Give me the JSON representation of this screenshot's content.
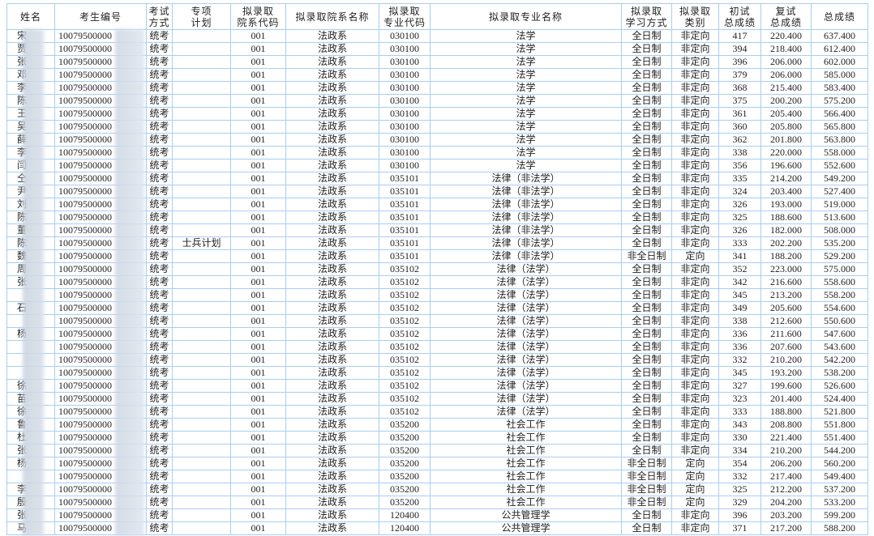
{
  "headers": [
    "姓名",
    "考生编号",
    "考试\n方式",
    "专项\n计划",
    "拟录取\n院系代码",
    "拟录取院系名称",
    "拟录取\n专业代码",
    "拟录取专业名称",
    "拟录取\n学习方式",
    "拟录取\n类别",
    "初试\n总成绩",
    "复试\n总成绩",
    "总成绩"
  ],
  "rows": [
    [
      "宋",
      "10079500000",
      "统考",
      "",
      "001",
      "法政系",
      "030100",
      "法学",
      "全日制",
      "非定向",
      "417",
      "220.400",
      "637.400"
    ],
    [
      "贾",
      "10079500000",
      "统考",
      "",
      "001",
      "法政系",
      "030100",
      "法学",
      "全日制",
      "非定向",
      "394",
      "218.400",
      "612.400"
    ],
    [
      "张",
      "10079500000",
      "统考",
      "",
      "001",
      "法政系",
      "030100",
      "法学",
      "全日制",
      "非定向",
      "396",
      "206.000",
      "602.000"
    ],
    [
      "邓",
      "10079500000",
      "统考",
      "",
      "001",
      "法政系",
      "030100",
      "法学",
      "全日制",
      "非定向",
      "379",
      "206.000",
      "585.000"
    ],
    [
      "李",
      "10079500000",
      "统考",
      "",
      "001",
      "法政系",
      "030100",
      "法学",
      "全日制",
      "非定向",
      "368",
      "215.400",
      "583.400"
    ],
    [
      "陈",
      "10079500000",
      "统考",
      "",
      "001",
      "法政系",
      "030100",
      "法学",
      "全日制",
      "非定向",
      "375",
      "200.200",
      "575.200"
    ],
    [
      "王",
      "10079500000",
      "统考",
      "",
      "001",
      "法政系",
      "030100",
      "法学",
      "全日制",
      "非定向",
      "361",
      "205.400",
      "566.400"
    ],
    [
      "吴",
      "10079500000",
      "统考",
      "",
      "001",
      "法政系",
      "030100",
      "法学",
      "全日制",
      "非定向",
      "360",
      "205.800",
      "565.800"
    ],
    [
      "薛",
      "10079500000",
      "统考",
      "",
      "001",
      "法政系",
      "030100",
      "法学",
      "全日制",
      "非定向",
      "362",
      "201.800",
      "563.800"
    ],
    [
      "李",
      "10079500000",
      "统考",
      "",
      "001",
      "法政系",
      "030100",
      "法学",
      "全日制",
      "非定向",
      "338",
      "220.000",
      "558.000"
    ],
    [
      "闫",
      "10079500000",
      "统考",
      "",
      "001",
      "法政系",
      "030100",
      "法学",
      "全日制",
      "非定向",
      "356",
      "196.600",
      "552.600"
    ],
    [
      "仝",
      "10079500000",
      "统考",
      "",
      "001",
      "法政系",
      "035101",
      "法律（非法学）",
      "全日制",
      "非定向",
      "335",
      "214.200",
      "549.200"
    ],
    [
      "尹",
      "10079500000",
      "统考",
      "",
      "001",
      "法政系",
      "035101",
      "法律（非法学）",
      "全日制",
      "非定向",
      "324",
      "203.400",
      "527.400"
    ],
    [
      "刘",
      "10079500000",
      "统考",
      "",
      "001",
      "法政系",
      "035101",
      "法律（非法学）",
      "全日制",
      "非定向",
      "326",
      "193.000",
      "519.000"
    ],
    [
      "陈",
      "10079500000",
      "统考",
      "",
      "001",
      "法政系",
      "035101",
      "法律（非法学）",
      "全日制",
      "非定向",
      "325",
      "188.600",
      "513.600"
    ],
    [
      "董",
      "10079500000",
      "统考",
      "",
      "001",
      "法政系",
      "035101",
      "法律（非法学）",
      "全日制",
      "非定向",
      "326",
      "182.000",
      "508.000"
    ],
    [
      "陈",
      "10079500000",
      "统考",
      "士兵计划",
      "001",
      "法政系",
      "035101",
      "法律（非法学）",
      "全日制",
      "非定向",
      "333",
      "202.200",
      "535.200"
    ],
    [
      "魏",
      "10079500000",
      "统考",
      "",
      "001",
      "法政系",
      "035101",
      "法律（非法学）",
      "非全日制",
      "定向",
      "341",
      "188.200",
      "529.200"
    ],
    [
      "周",
      "10079500000",
      "统考",
      "",
      "001",
      "法政系",
      "035102",
      "法律（法学）",
      "全日制",
      "非定向",
      "352",
      "223.000",
      "575.000"
    ],
    [
      "张",
      "10079500000",
      "统考",
      "",
      "001",
      "法政系",
      "035102",
      "法律（法学）",
      "全日制",
      "非定向",
      "342",
      "216.600",
      "558.600"
    ],
    [
      "",
      "10079500000",
      "统考",
      "",
      "001",
      "法政系",
      "035102",
      "法律（法学）",
      "全日制",
      "非定向",
      "345",
      "213.200",
      "558.200"
    ],
    [
      "石",
      "10079500000",
      "统考",
      "",
      "001",
      "法政系",
      "035102",
      "法律（法学）",
      "全日制",
      "非定向",
      "349",
      "205.600",
      "554.600"
    ],
    [
      "",
      "10079500000",
      "统考",
      "",
      "001",
      "法政系",
      "035102",
      "法律（法学）",
      "全日制",
      "非定向",
      "338",
      "212.600",
      "550.600"
    ],
    [
      "杨",
      "10079500000",
      "统考",
      "",
      "001",
      "法政系",
      "035102",
      "法律（法学）",
      "全日制",
      "非定向",
      "336",
      "211.600",
      "547.600"
    ],
    [
      "",
      "10079500000",
      "统考",
      "",
      "001",
      "法政系",
      "035102",
      "法律（法学）",
      "全日制",
      "非定向",
      "336",
      "207.600",
      "543.600"
    ],
    [
      "",
      "10079500000",
      "统考",
      "",
      "001",
      "法政系",
      "035102",
      "法律（法学）",
      "全日制",
      "非定向",
      "332",
      "210.200",
      "542.200"
    ],
    [
      "",
      "10079500000",
      "统考",
      "",
      "001",
      "法政系",
      "035102",
      "法律（法学）",
      "全日制",
      "非定向",
      "345",
      "193.200",
      "538.200"
    ],
    [
      "徐",
      "10079500000",
      "统考",
      "",
      "001",
      "法政系",
      "035102",
      "法律（法学）",
      "全日制",
      "非定向",
      "327",
      "199.600",
      "526.600"
    ],
    [
      "苗",
      "10079500000",
      "统考",
      "",
      "001",
      "法政系",
      "035102",
      "法律（法学）",
      "全日制",
      "非定向",
      "323",
      "201.400",
      "524.400"
    ],
    [
      "徐",
      "10079500000",
      "统考",
      "",
      "001",
      "法政系",
      "035102",
      "法律（法学）",
      "全日制",
      "非定向",
      "333",
      "188.800",
      "521.800"
    ],
    [
      "鲁",
      "10079500000",
      "统考",
      "",
      "001",
      "法政系",
      "035200",
      "社会工作",
      "全日制",
      "非定向",
      "343",
      "208.800",
      "551.800"
    ],
    [
      "杜",
      "10079500000",
      "统考",
      "",
      "001",
      "法政系",
      "035200",
      "社会工作",
      "全日制",
      "非定向",
      "330",
      "221.400",
      "551.400"
    ],
    [
      "张",
      "10079500000",
      "统考",
      "",
      "001",
      "法政系",
      "035200",
      "社会工作",
      "全日制",
      "非定向",
      "334",
      "210.200",
      "544.200"
    ],
    [
      "杨",
      "10079500000",
      "统考",
      "",
      "001",
      "法政系",
      "035200",
      "社会工作",
      "非全日制",
      "定向",
      "354",
      "206.200",
      "560.200"
    ],
    [
      "",
      "10079500000",
      "统考",
      "",
      "001",
      "法政系",
      "035200",
      "社会工作",
      "非全日制",
      "定向",
      "332",
      "217.400",
      "549.400"
    ],
    [
      "李",
      "10079500000",
      "统考",
      "",
      "001",
      "法政系",
      "035200",
      "社会工作",
      "非全日制",
      "定向",
      "325",
      "212.200",
      "537.200"
    ],
    [
      "殷",
      "10079500000",
      "统考",
      "",
      "001",
      "法政系",
      "035200",
      "社会工作",
      "非全日制",
      "定向",
      "329",
      "204.200",
      "533.200"
    ],
    [
      "张",
      "10079500000",
      "统考",
      "",
      "001",
      "法政系",
      "120400",
      "公共管理学",
      "全日制",
      "非定向",
      "396",
      "203.200",
      "599.200"
    ],
    [
      "马",
      "10079500000",
      "统考",
      "",
      "001",
      "法政系",
      "120400",
      "公共管理学",
      "全日制",
      "非定向",
      "371",
      "217.200",
      "588.200"
    ]
  ],
  "colors": {
    "border": "#a9cdf2",
    "text": "#222222"
  }
}
